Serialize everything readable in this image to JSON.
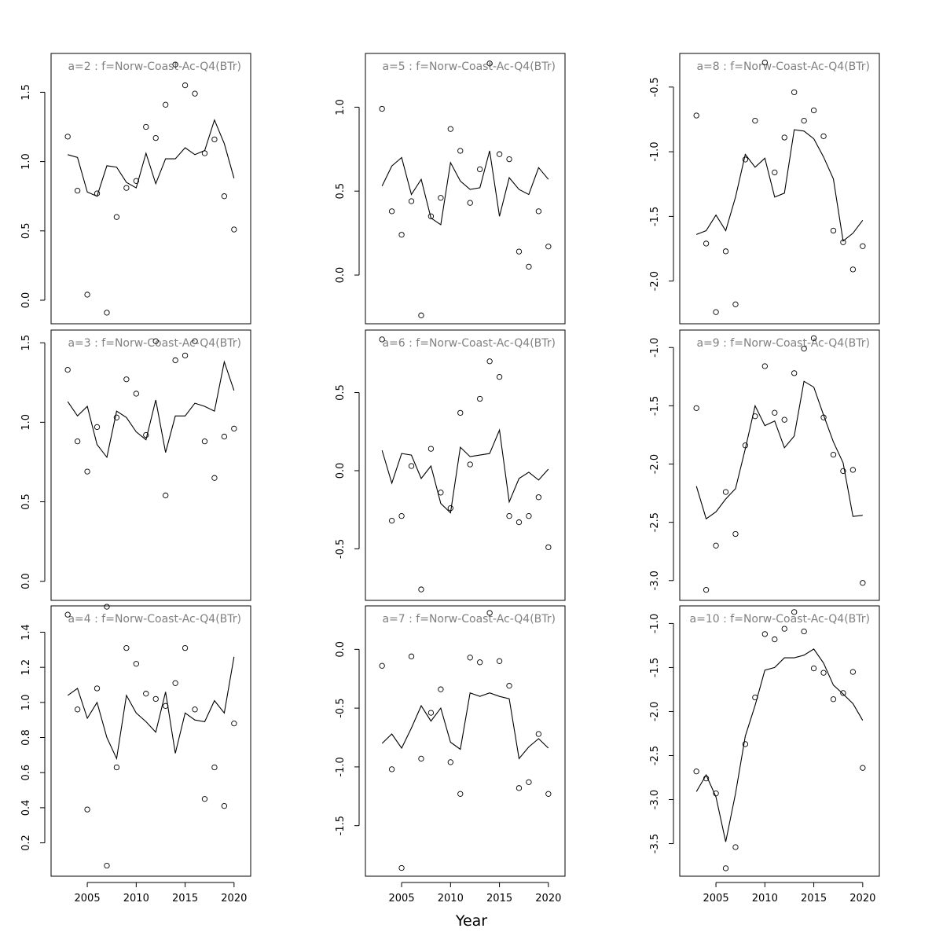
{
  "xlabel": "Year",
  "chart_data": [
    {
      "type": "scatter",
      "title": "a=2  :  f=Norw-Coast-Ac-Q4(BTr)",
      "x": [
        2003,
        2004,
        2005,
        2006,
        2007,
        2008,
        2009,
        2010,
        2011,
        2012,
        2013,
        2014,
        2015,
        2016,
        2017,
        2018,
        2019,
        2020
      ],
      "series": [
        {
          "values": [
            1.18,
            0.79,
            0.04,
            0.77,
            -0.09,
            0.6,
            0.81,
            0.86,
            1.25,
            1.17,
            1.41,
            1.7,
            1.55,
            1.49,
            1.06,
            1.16,
            0.75,
            0.51
          ]
        },
        {
          "values": [
            1.05,
            1.03,
            0.78,
            0.75,
            0.97,
            0.96,
            0.85,
            0.81,
            1.06,
            0.84,
            1.02,
            1.02,
            1.1,
            1.05,
            1.08,
            1.3,
            1.13,
            0.88
          ]
        }
      ],
      "ylim": [
        -0.17,
        1.78
      ],
      "yticks": [
        0.0,
        0.5,
        1.0,
        1.5
      ],
      "ytick_labels": [
        "0.0",
        "0.5",
        "1.0",
        "1.5"
      ],
      "xticks": [],
      "xtick_labels": []
    },
    {
      "type": "scatter",
      "title": "a=5  :  f=Norw-Coast-Ac-Q4(BTr)",
      "x": [
        2003,
        2004,
        2005,
        2006,
        2007,
        2008,
        2009,
        2010,
        2011,
        2012,
        2013,
        2014,
        2015,
        2016,
        2017,
        2018,
        2019,
        2020
      ],
      "series": [
        {
          "values": [
            0.99,
            0.38,
            0.24,
            0.44,
            -0.24,
            0.35,
            0.46,
            0.87,
            0.74,
            0.43,
            0.63,
            1.26,
            0.72,
            0.69,
            0.14,
            0.05,
            0.38,
            0.17
          ]
        },
        {
          "values": [
            0.53,
            0.65,
            0.7,
            0.48,
            0.57,
            0.34,
            0.3,
            0.67,
            0.56,
            0.51,
            0.52,
            0.74,
            0.35,
            0.58,
            0.51,
            0.48,
            0.64,
            0.57
          ]
        }
      ],
      "ylim": [
        -0.29,
        1.32
      ],
      "yticks": [
        0.0,
        0.5,
        1.0
      ],
      "ytick_labels": [
        "0.0",
        "0.5",
        "1.0"
      ],
      "xticks": [],
      "xtick_labels": []
    },
    {
      "type": "scatter",
      "title": "a=8  :  f=Norw-Coast-Ac-Q4(BTr)",
      "x": [
        2003,
        2004,
        2005,
        2006,
        2007,
        2008,
        2009,
        2010,
        2011,
        2012,
        2013,
        2014,
        2015,
        2016,
        2017,
        2018,
        2019,
        2020
      ],
      "series": [
        {
          "values": [
            -0.72,
            -1.71,
            -2.24,
            -1.77,
            -2.18,
            -1.06,
            -0.76,
            -0.31,
            -1.16,
            -0.89,
            -0.54,
            -0.76,
            -0.68,
            -0.88,
            -1.61,
            -1.7,
            -1.91,
            -1.73
          ]
        },
        {
          "values": [
            -1.64,
            -1.61,
            -1.49,
            -1.61,
            -1.35,
            -1.02,
            -1.12,
            -1.05,
            -1.35,
            -1.32,
            -0.83,
            -0.84,
            -0.9,
            -1.04,
            -1.21,
            -1.69,
            -1.63,
            -1.53
          ]
        }
      ],
      "ylim": [
        -2.33,
        -0.24
      ],
      "yticks": [
        -2.0,
        -1.5,
        -1.0,
        -0.5
      ],
      "ytick_labels": [
        "-2.0",
        "-1.5",
        "-1.0",
        "-0.5"
      ],
      "xticks": [],
      "xtick_labels": []
    },
    {
      "type": "scatter",
      "title": "a=3  :  f=Norw-Coast-Ac-Q4(BTr)",
      "x": [
        2003,
        2004,
        2005,
        2006,
        2007,
        2008,
        2009,
        2010,
        2011,
        2012,
        2013,
        2014,
        2015,
        2016,
        2017,
        2018,
        2019,
        2020
      ],
      "series": [
        {
          "values": [
            1.33,
            0.88,
            0.69,
            0.97,
            -0.16,
            1.03,
            1.27,
            1.18,
            0.92,
            1.51,
            0.54,
            1.39,
            1.42,
            1.51,
            0.88,
            0.65,
            0.91,
            0.96
          ]
        },
        {
          "values": [
            1.13,
            1.04,
            1.1,
            0.86,
            0.78,
            1.07,
            1.03,
            0.94,
            0.89,
            1.14,
            0.81,
            1.04,
            1.04,
            1.12,
            1.1,
            1.07,
            1.38,
            1.2
          ]
        }
      ],
      "ylim": [
        -0.12,
        1.58
      ],
      "yticks": [
        0.0,
        0.5,
        1.0,
        1.5
      ],
      "ytick_labels": [
        "0.0",
        "0.5",
        "1.0",
        "1.5"
      ],
      "xticks": [],
      "xtick_labels": []
    },
    {
      "type": "scatter",
      "title": "a=6  :  f=Norw-Coast-Ac-Q4(BTr)",
      "x": [
        2003,
        2004,
        2005,
        2006,
        2007,
        2008,
        2009,
        2010,
        2011,
        2012,
        2013,
        2014,
        2015,
        2016,
        2017,
        2018,
        2019,
        2020
      ],
      "series": [
        {
          "values": [
            0.84,
            -0.32,
            -0.29,
            0.03,
            -0.76,
            0.14,
            -0.14,
            -0.24,
            0.37,
            0.04,
            0.46,
            0.7,
            0.6,
            -0.29,
            -0.33,
            -0.29,
            -0.17,
            -0.49
          ]
        },
        {
          "values": [
            0.13,
            -0.08,
            0.11,
            0.1,
            -0.05,
            0.03,
            -0.21,
            -0.27,
            0.15,
            0.09,
            0.1,
            0.11,
            0.26,
            -0.2,
            -0.05,
            -0.01,
            -0.06,
            0.01
          ]
        }
      ],
      "ylim": [
        -0.83,
        0.9
      ],
      "yticks": [
        -0.5,
        0.0,
        0.5
      ],
      "ytick_labels": [
        "-0.5",
        "0.0",
        "0.5"
      ],
      "xticks": [],
      "xtick_labels": []
    },
    {
      "type": "scatter",
      "title": "a=9  :  f=Norw-Coast-Ac-Q4(BTr)",
      "x": [
        2003,
        2004,
        2005,
        2006,
        2007,
        2008,
        2009,
        2010,
        2011,
        2012,
        2013,
        2014,
        2015,
        2016,
        2017,
        2018,
        2019,
        2020
      ],
      "series": [
        {
          "values": [
            -1.52,
            -3.08,
            -2.7,
            -2.24,
            -2.6,
            -1.84,
            -1.59,
            -1.16,
            -1.56,
            -1.62,
            -1.22,
            -1.01,
            -0.92,
            -1.6,
            -1.92,
            -2.06,
            -2.05,
            -3.02
          ]
        },
        {
          "values": [
            -2.19,
            -2.47,
            -2.41,
            -2.3,
            -2.21,
            -1.87,
            -1.5,
            -1.67,
            -1.63,
            -1.86,
            -1.76,
            -1.29,
            -1.34,
            -1.58,
            -1.81,
            -1.99,
            -2.45,
            -2.44
          ]
        }
      ],
      "ylim": [
        -3.17,
        -0.85
      ],
      "yticks": [
        -3.0,
        -2.5,
        -2.0,
        -1.5,
        -1.0
      ],
      "ytick_labels": [
        "-3.0",
        "-2.5",
        "-2.0",
        "-1.5",
        "-1.0"
      ],
      "xticks": [],
      "xtick_labels": []
    },
    {
      "type": "scatter",
      "title": "a=4  :  f=Norw-Coast-Ac-Q4(BTr)",
      "x": [
        2003,
        2004,
        2005,
        2006,
        2007,
        2008,
        2009,
        2010,
        2011,
        2012,
        2013,
        2014,
        2015,
        2016,
        2017,
        2018,
        2019,
        2020
      ],
      "series": [
        {
          "values": [
            1.5,
            0.96,
            0.39,
            1.08,
            0.07,
            0.63,
            1.31,
            1.22,
            1.05,
            1.02,
            0.98,
            1.11,
            1.31,
            0.96,
            0.45,
            0.63,
            0.41,
            0.88
          ]
        },
        {
          "values": [
            1.04,
            1.08,
            0.91,
            1.0,
            0.8,
            0.68,
            1.04,
            0.94,
            0.89,
            0.83,
            1.06,
            0.71,
            0.94,
            0.9,
            0.89,
            1.01,
            0.94,
            1.26
          ]
        }
      ],
      "ylim": [
        0.01,
        1.55
      ],
      "yticks": [
        0.2,
        0.4,
        0.6,
        0.8,
        1.0,
        1.2,
        1.4
      ],
      "ytick_labels": [
        "0.2",
        "0.4",
        "0.6",
        "0.8",
        "1.0",
        "1.2",
        "1.4"
      ],
      "xticks": [
        2005,
        2010,
        2015,
        2020
      ],
      "xtick_labels": [
        "2005",
        "2010",
        "2015",
        "2020"
      ]
    },
    {
      "type": "scatter",
      "title": "a=7  :  f=Norw-Coast-Ac-Q4(BTr)",
      "x": [
        2003,
        2004,
        2005,
        2006,
        2007,
        2008,
        2009,
        2010,
        2011,
        2012,
        2013,
        2014,
        2015,
        2016,
        2017,
        2018,
        2019,
        2020
      ],
      "series": [
        {
          "values": [
            -0.14,
            -1.02,
            -1.86,
            -0.06,
            -0.93,
            -0.54,
            -0.34,
            -0.96,
            -1.23,
            -0.07,
            -0.11,
            0.31,
            -0.1,
            -0.31,
            -1.18,
            -1.13,
            -0.72,
            -1.23
          ]
        },
        {
          "values": [
            -0.8,
            -0.72,
            -0.84,
            -0.67,
            -0.48,
            -0.61,
            -0.5,
            -0.79,
            -0.85,
            -0.37,
            -0.4,
            -0.37,
            -0.4,
            -0.42,
            -0.93,
            -0.83,
            -0.76,
            -0.84
          ]
        }
      ],
      "ylim": [
        -1.93,
        0.37
      ],
      "yticks": [
        -1.5,
        -1.0,
        -0.5,
        0.0
      ],
      "ytick_labels": [
        "-1.5",
        "-1.0",
        "-0.5",
        "0.0"
      ],
      "xticks": [
        2005,
        2010,
        2015,
        2020
      ],
      "xtick_labels": [
        "2005",
        "2010",
        "2015",
        "2020"
      ]
    },
    {
      "type": "scatter",
      "title": "a=10  :  f=Norw-Coast-Ac-Q4(BTr)",
      "x": [
        2003,
        2004,
        2005,
        2006,
        2007,
        2008,
        2009,
        2010,
        2011,
        2012,
        2013,
        2014,
        2015,
        2016,
        2017,
        2018,
        2019,
        2020
      ],
      "series": [
        {
          "values": [
            -2.68,
            -2.76,
            -2.93,
            -3.78,
            -3.54,
            -2.37,
            -1.84,
            -1.12,
            -1.18,
            -1.06,
            -0.87,
            -1.09,
            -1.51,
            -1.56,
            -1.86,
            -1.79,
            -1.55,
            -2.64
          ]
        },
        {
          "values": [
            -2.91,
            -2.72,
            -2.97,
            -3.48,
            -2.93,
            -2.28,
            -1.93,
            -1.53,
            -1.5,
            -1.39,
            -1.39,
            -1.36,
            -1.29,
            -1.45,
            -1.7,
            -1.8,
            -1.91,
            -2.1
          ]
        }
      ],
      "ylim": [
        -3.87,
        -0.8
      ],
      "yticks": [
        -3.5,
        -3.0,
        -2.5,
        -2.0,
        -1.5,
        -1.0
      ],
      "ytick_labels": [
        "-3.5",
        "-3.0",
        "-2.5",
        "-2.0",
        "-1.5",
        "-1.0"
      ],
      "xticks": [
        2005,
        2010,
        2015,
        2020
      ],
      "xtick_labels": [
        "2005",
        "2010",
        "2015",
        "2020"
      ]
    }
  ]
}
